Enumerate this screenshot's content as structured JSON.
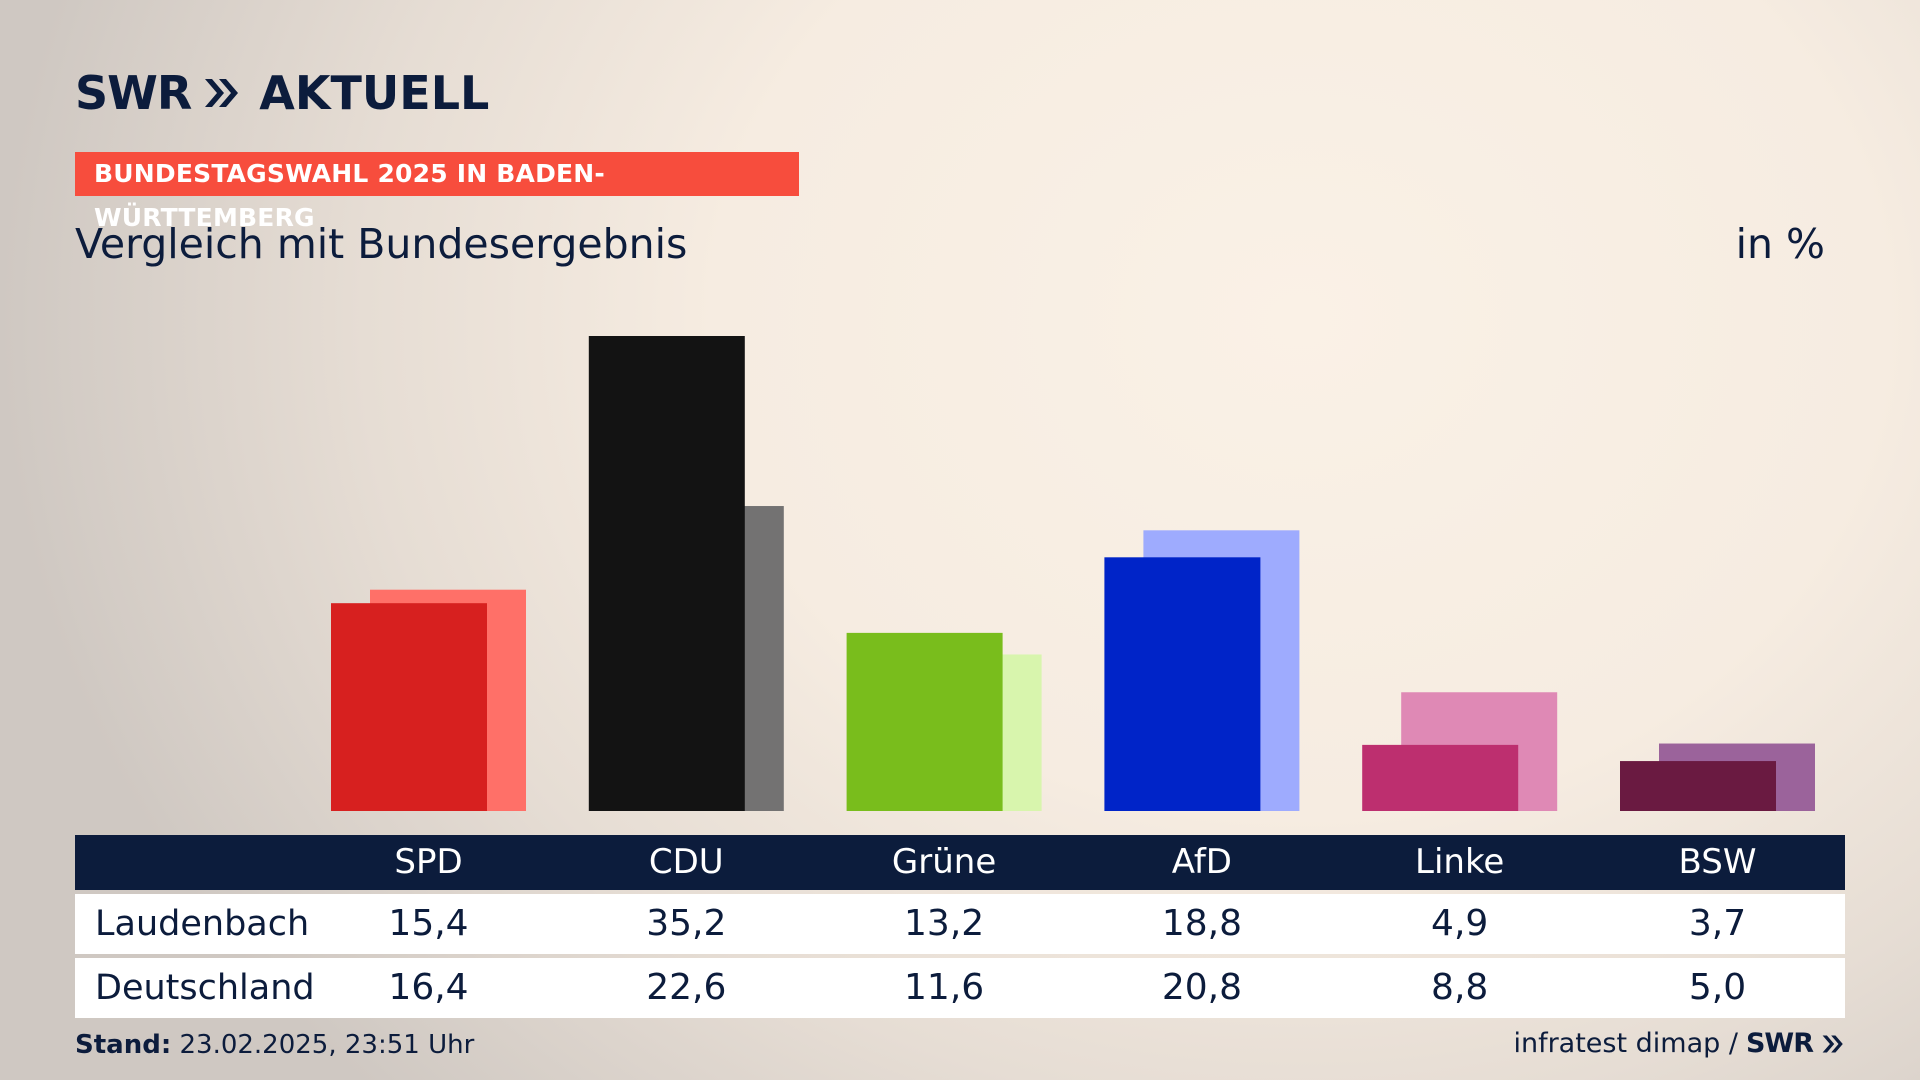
{
  "brand": {
    "logo_swr": "SWR",
    "logo_aktuell": "AKTUELL"
  },
  "banner": "BUNDESTAGSWAHL 2025 IN BADEN-WÜRTTEMBERG",
  "subtitle": "Vergleich mit Bundesergebnis",
  "unit": "in %",
  "footer": {
    "stand_label": "Stand:",
    "stand_value": "23.02.2025, 23:51 Uhr",
    "source": "infratest dimap /",
    "source_logo": "SWR"
  },
  "colors": {
    "navy": "#0c1c3c",
    "banner": "#f74d3d"
  },
  "chart_data": {
    "type": "bar",
    "categories": [
      "SPD",
      "CDU",
      "Grüne",
      "AfD",
      "Linke",
      "BSW"
    ],
    "series": [
      {
        "name": "Laudenbach",
        "values": [
          15.4,
          35.2,
          13.2,
          18.8,
          4.9,
          3.7
        ],
        "colors": [
          "#d7201f",
          "#131313",
          "#79bd1c",
          "#0024c8",
          "#bd2f6f",
          "#6a1a41"
        ]
      },
      {
        "name": "Deutschland",
        "values": [
          16.4,
          22.6,
          11.6,
          20.8,
          8.8,
          5.0
        ],
        "colors": [
          "#ff7068",
          "#737272",
          "#d8f5ad",
          "#9eabfe",
          "#df89b5",
          "#9b639b"
        ]
      }
    ],
    "ylim": [
      0,
      35.2
    ],
    "xlabel": "",
    "ylabel": "",
    "table": {
      "rows": [
        {
          "label": "Laudenbach",
          "values": [
            "15,4",
            "35,2",
            "13,2",
            "18,8",
            "4,9",
            "3,7"
          ]
        },
        {
          "label": "Deutschland",
          "values": [
            "16,4",
            "22,6",
            "11,6",
            "20,8",
            "8,8",
            "5,0"
          ]
        }
      ]
    }
  }
}
